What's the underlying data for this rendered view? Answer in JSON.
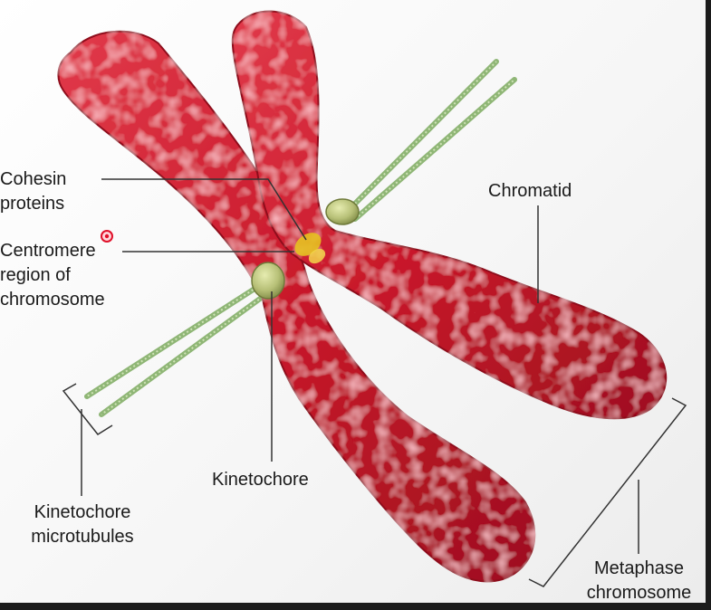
{
  "labels": {
    "cohesin": [
      "Cohesin",
      "proteins"
    ],
    "centromere": [
      "Centromere",
      "region of",
      "chromosome"
    ],
    "chromatid": "Chromatid",
    "kinetochore": "Kinetochore",
    "microtubules": [
      "Kinetochore",
      "microtubules"
    ],
    "metaphase": [
      "Metaphase",
      "chromosome"
    ]
  },
  "colors": {
    "chromatid_red": "#c8182a",
    "chromatid_highlight": "#f06470",
    "microtubule_green": "#a7c98a",
    "kinetochore_green": "#b7c077",
    "cohesin_yellow": "#e6c020",
    "leader_line": "#333333",
    "cursor_marker": "#e0102a"
  }
}
